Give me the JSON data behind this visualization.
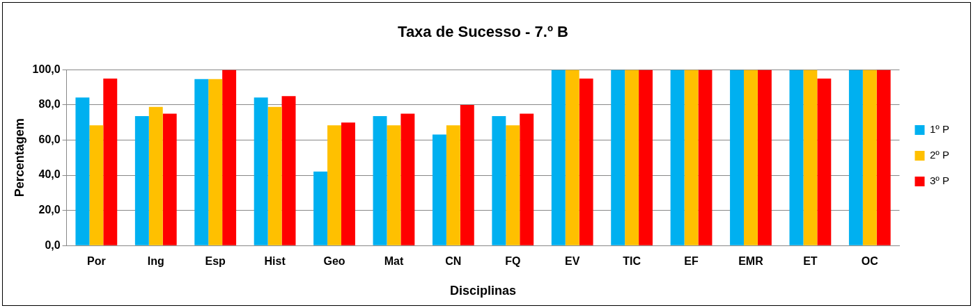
{
  "chart_data": {
    "type": "bar",
    "title": "Taxa de Sucesso - 7.º B",
    "xlabel": "Disciplinas",
    "ylabel": "Percentagem",
    "categories": [
      "Por",
      "Ing",
      "Esp",
      "Hist",
      "Geo",
      "Mat",
      "CN",
      "FQ",
      "EV",
      "TIC",
      "EF",
      "EMR",
      "ET",
      "OC"
    ],
    "series": [
      {
        "name": "1º P",
        "color": "#00b0f0",
        "values": [
          84.2,
          73.7,
          94.7,
          84.2,
          42.1,
          73.7,
          63.2,
          73.7,
          100,
          100,
          100,
          100,
          100,
          100
        ]
      },
      {
        "name": "2º P",
        "color": "#ffc000",
        "values": [
          68.4,
          78.9,
          94.7,
          78.9,
          68.4,
          68.4,
          68.4,
          68.4,
          100,
          100,
          100,
          100,
          100,
          100
        ]
      },
      {
        "name": "3º P",
        "color": "#ff0000",
        "values": [
          95,
          75,
          100,
          85,
          70,
          75,
          80,
          75,
          95,
          100,
          100,
          100,
          95,
          100
        ]
      }
    ],
    "ylim": [
      0,
      100
    ],
    "yticks": [
      {
        "value": 0,
        "label": "0,0"
      },
      {
        "value": 20,
        "label": "20,0"
      },
      {
        "value": 40,
        "label": "40,0"
      },
      {
        "value": 60,
        "label": "60,0"
      },
      {
        "value": 80,
        "label": "80,0"
      },
      {
        "value": 100,
        "label": "100,0"
      }
    ],
    "grid": "y",
    "legend": "right"
  }
}
